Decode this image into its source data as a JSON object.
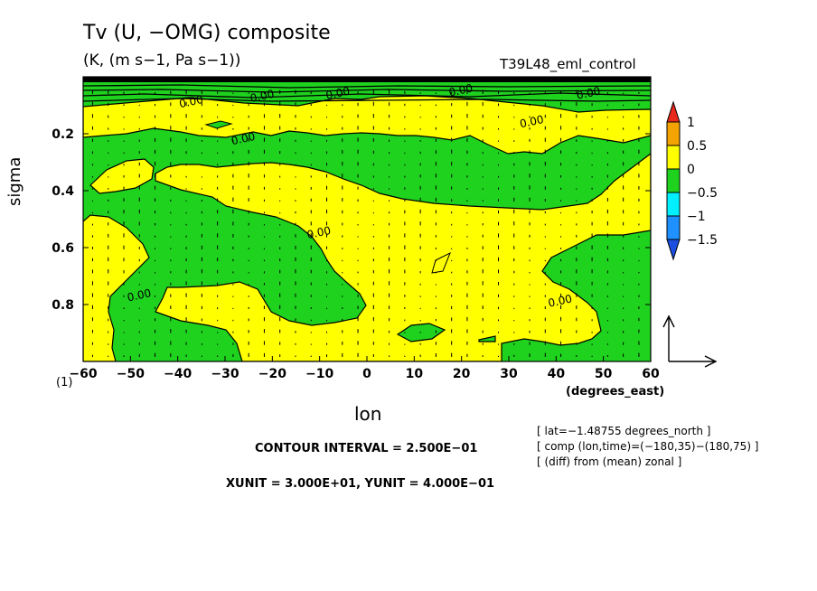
{
  "title": "Tv (U, −OMG) composite",
  "units": "(K, (m s−1, Pa s−1))",
  "run_name": "T39L48_eml_control",
  "contour_interval": "CONTOUR INTERVAL = 2.500E−01",
  "vector_units": "XUNIT = 3.000E+01, YUNIT = 4.000E−01",
  "info": [
    "[ lat=−1.48755 degrees_north ]",
    "[ comp (lon,time)=(−180,35)−(180,75) ]",
    "[ (diff) from (mean) zonal ]"
  ],
  "chart_data": {
    "type": "heatmap",
    "title": "Tv (U, −OMG) composite",
    "subtitle": "(K, (m s−1, Pa s−1))",
    "xlabel": "lon",
    "ylabel": "sigma",
    "x_unit_label": "(degrees_east)",
    "y_extra_label": "(1)",
    "xlim": [
      -60,
      60
    ],
    "ylim": [
      1.0,
      0.0
    ],
    "x_ticks": [
      -60,
      -50,
      -40,
      -30,
      -20,
      -10,
      0,
      10,
      20,
      30,
      40,
      50,
      60
    ],
    "x_tick_labels": [
      "−60",
      "−50",
      "−40",
      "−30",
      "−20",
      "−10",
      "0",
      "10",
      "20",
      "30",
      "40",
      "50",
      "60"
    ],
    "y_ticks": [
      0.2,
      0.4,
      0.6,
      0.8
    ],
    "y_tick_labels": [
      "0.2",
      "0.4",
      "0.6",
      "0.8"
    ],
    "contour_label": "0.00",
    "colorbar": {
      "labels": [
        "1",
        "0.5",
        "0",
        "−0.5",
        "−1",
        "−1.5"
      ],
      "colors": [
        "#e8291c",
        "#f5a300",
        "#ffff00",
        "#1ed21e",
        "#00f0ff",
        "#1e90ff",
        "#1c4fe0"
      ]
    },
    "regions": {
      "positive_color": "#ffff00",
      "negative_color": "#1ed21e"
    }
  }
}
